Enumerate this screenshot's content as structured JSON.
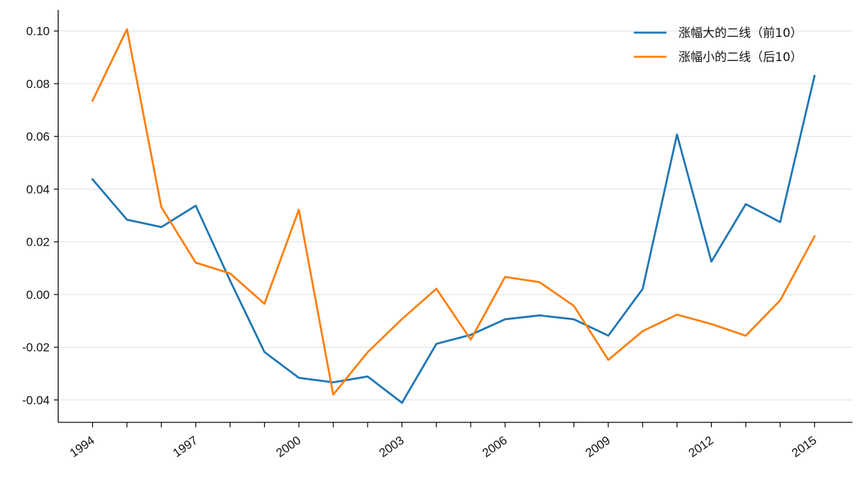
{
  "chart_data": {
    "type": "line",
    "x": [
      1994,
      1995,
      1996,
      1997,
      1998,
      1999,
      2000,
      2001,
      2002,
      2003,
      2004,
      2005,
      2006,
      2007,
      2008,
      2009,
      2010,
      2011,
      2012,
      2013,
      2014,
      2015
    ],
    "x_tick_labels": [
      "1994",
      "1997",
      "2000",
      "2003",
      "2006",
      "2009",
      "2012",
      "2015"
    ],
    "y_tick_labels": [
      "0.10",
      "0.08",
      "0.06",
      "0.04",
      "0.02",
      "0.00",
      "-0.02",
      "-0.04"
    ],
    "ylim": [
      -0.0485,
      0.108
    ],
    "xlim": [
      1993.0,
      2016.1
    ],
    "grid": "horizontal",
    "legend_position": "top-right",
    "series": [
      {
        "name": "涨幅大的二线（前10）",
        "color": "#1f77b4",
        "values": [
          0.0437,
          0.0284,
          0.0256,
          0.0337,
          0.0053,
          -0.0218,
          -0.0316,
          -0.0333,
          -0.0311,
          -0.0411,
          -0.0187,
          -0.0153,
          -0.0094,
          -0.0079,
          -0.0094,
          -0.0156,
          0.0021,
          0.0607,
          0.0125,
          0.0343,
          0.0275,
          0.083
        ]
      },
      {
        "name": "涨幅小的二线（后10）",
        "color": "#ff7f0e",
        "values": [
          0.0736,
          0.1007,
          0.0332,
          0.0121,
          0.008,
          -0.0035,
          0.0322,
          -0.038,
          -0.0219,
          -0.0093,
          0.0022,
          -0.0171,
          0.0067,
          0.0047,
          -0.0043,
          -0.0248,
          -0.0139,
          -0.0076,
          -0.0112,
          -0.0156,
          -0.0022,
          0.0221
        ]
      }
    ]
  }
}
